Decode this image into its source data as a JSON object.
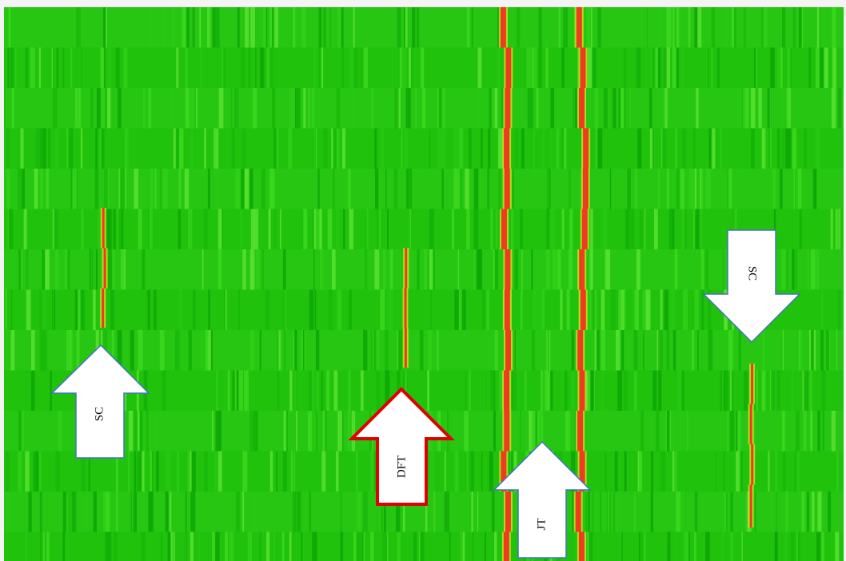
{
  "annotations": [
    {
      "label": "SC"
    },
    {
      "label": "DFT"
    },
    {
      "label": "JT"
    },
    {
      "label": "SC"
    }
  ]
}
